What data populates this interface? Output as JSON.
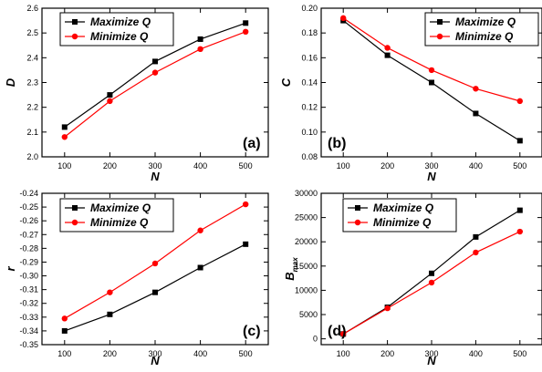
{
  "chart_data": [
    {
      "type": "line",
      "panel_label": "(a)",
      "xlabel": "N",
      "ylabel": "D",
      "x": [
        100,
        200,
        300,
        400,
        500
      ],
      "xlim": [
        50,
        550
      ],
      "xticks": [
        "100",
        "200",
        "300",
        "400",
        "500"
      ],
      "ylim": [
        2.0,
        2.6
      ],
      "yticks": [
        "2.0",
        "2.1",
        "2.2",
        "2.3",
        "2.4",
        "2.5",
        "2.6"
      ],
      "series": [
        {
          "name": "Maximize Q",
          "color": "#000000",
          "marker": "square",
          "values": [
            2.12,
            2.25,
            2.385,
            2.475,
            2.54
          ]
        },
        {
          "name": "Minimize Q",
          "color": "#ff0000",
          "marker": "circle",
          "values": [
            2.08,
            2.225,
            2.34,
            2.435,
            2.505
          ]
        }
      ],
      "legend": "top-left",
      "grid": false
    },
    {
      "type": "line",
      "panel_label": "(b)",
      "xlabel": "N",
      "ylabel": "C",
      "x": [
        100,
        200,
        300,
        400,
        500
      ],
      "xlim": [
        50,
        550
      ],
      "xticks": [
        "100",
        "200",
        "300",
        "400",
        "500"
      ],
      "ylim": [
        0.08,
        0.2
      ],
      "yticks": [
        "0.08",
        "0.10",
        "0.12",
        "0.14",
        "0.16",
        "0.18",
        "0.20"
      ],
      "series": [
        {
          "name": "Maximize Q",
          "color": "#000000",
          "marker": "square",
          "values": [
            0.19,
            0.162,
            0.14,
            0.115,
            0.093
          ]
        },
        {
          "name": "Minimize Q",
          "color": "#ff0000",
          "marker": "circle",
          "values": [
            0.192,
            0.168,
            0.15,
            0.135,
            0.125
          ]
        }
      ],
      "legend": "top-right",
      "grid": false
    },
    {
      "type": "line",
      "panel_label": "(c)",
      "xlabel": "N",
      "ylabel": "r",
      "x": [
        100,
        200,
        300,
        400,
        500
      ],
      "xlim": [
        50,
        550
      ],
      "xticks": [
        "100",
        "200",
        "300",
        "400",
        "500"
      ],
      "ylim": [
        -0.35,
        -0.24
      ],
      "yticks": [
        "-0.35",
        "-0.34",
        "-0.33",
        "-0.32",
        "-0.31",
        "-0.30",
        "-0.29",
        "-0.28",
        "-0.27",
        "-0.26",
        "-0.25",
        "-0.24"
      ],
      "series": [
        {
          "name": "Maximize Q",
          "color": "#000000",
          "marker": "square",
          "values": [
            -0.34,
            -0.328,
            -0.312,
            -0.294,
            -0.277
          ]
        },
        {
          "name": "Minimize Q",
          "color": "#ff0000",
          "marker": "circle",
          "values": [
            -0.331,
            -0.312,
            -0.291,
            -0.267,
            -0.248
          ]
        }
      ],
      "legend": "top-left",
      "grid": false
    },
    {
      "type": "line",
      "panel_label": "(d)",
      "xlabel": "N",
      "ylabel": "B",
      "ylabel_sub": "max",
      "x": [
        100,
        200,
        300,
        400,
        500
      ],
      "xlim": [
        50,
        550
      ],
      "xticks": [
        "100",
        "200",
        "300",
        "400",
        "500"
      ],
      "ylim": [
        -1200,
        30000
      ],
      "yticks": [
        "0",
        "5000",
        "10000",
        "15000",
        "20000",
        "25000",
        "30000"
      ],
      "series": [
        {
          "name": "Maximize Q",
          "color": "#000000",
          "marker": "square",
          "values": [
            1000,
            6500,
            13500,
            21000,
            26500
          ]
        },
        {
          "name": "Minimize Q",
          "color": "#ff0000",
          "marker": "circle",
          "values": [
            1000,
            6300,
            11600,
            17800,
            22100
          ]
        }
      ],
      "legend": "top-left",
      "grid": false
    }
  ]
}
